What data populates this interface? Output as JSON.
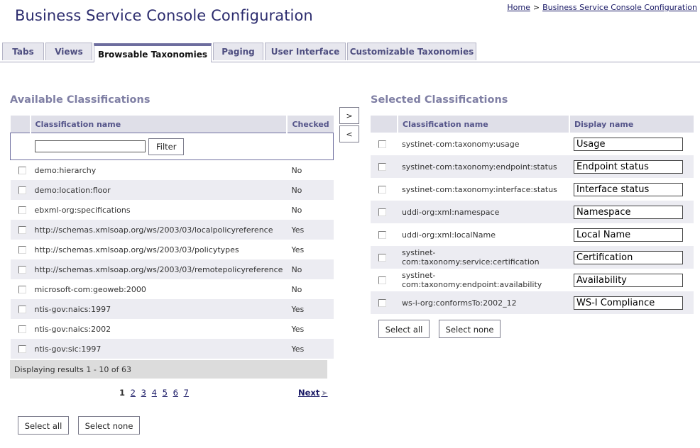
{
  "page": {
    "title": "Business Service Console Configuration"
  },
  "breadcrumb": {
    "home": "Home",
    "separator": ">",
    "current": "Business Service Console Configuration"
  },
  "tabs": [
    {
      "label": "Tabs",
      "active": false
    },
    {
      "label": "Views",
      "active": false
    },
    {
      "label": "Browsable Taxonomies",
      "active": true
    },
    {
      "label": "Paging",
      "active": false
    },
    {
      "label": "User Interface",
      "active": false
    },
    {
      "label": "Customizable Taxonomies",
      "active": false
    }
  ],
  "available": {
    "title": "Available Classifications",
    "headers": {
      "name": "Classification name",
      "checked": "Checked"
    },
    "filter": {
      "value": "",
      "button": "Filter"
    },
    "rows": [
      {
        "name": "demo:hierarchy",
        "checked": "No"
      },
      {
        "name": "demo:location:floor",
        "checked": "No"
      },
      {
        "name": "ebxml-org:specifications",
        "checked": "No"
      },
      {
        "name": "http://schemas.xmlsoap.org/ws/2003/03/localpolicyreference",
        "checked": "Yes"
      },
      {
        "name": "http://schemas.xmlsoap.org/ws/2003/03/policytypes",
        "checked": "Yes"
      },
      {
        "name": "http://schemas.xmlsoap.org/ws/2003/03/remotepolicyreference",
        "checked": "No"
      },
      {
        "name": "microsoft-com:geoweb:2000",
        "checked": "No"
      },
      {
        "name": "ntis-gov:naics:1997",
        "checked": "Yes"
      },
      {
        "name": "ntis-gov:naics:2002",
        "checked": "Yes"
      },
      {
        "name": "ntis-gov:sic:1997",
        "checked": "Yes"
      }
    ],
    "status": "Displaying results 1 - 10 of 63",
    "pages": [
      "1",
      "2",
      "3",
      "4",
      "5",
      "6",
      "7"
    ],
    "current_page": "1",
    "next": "Next",
    "select_all": "Select all",
    "select_none": "Select none"
  },
  "move": {
    "add": ">",
    "remove": "<"
  },
  "selected": {
    "title": "Selected Classifications",
    "headers": {
      "name": "Classification name",
      "display": "Display name"
    },
    "rows": [
      {
        "name": "systinet-com:taxonomy:usage",
        "display": "Usage"
      },
      {
        "name": "systinet-com:taxonomy:endpoint:status",
        "display": "Endpoint status"
      },
      {
        "name": "systinet-com:taxonomy:interface:status",
        "display": "Interface status"
      },
      {
        "name": "uddi-org:xml:namespace",
        "display": "Namespace"
      },
      {
        "name": "uddi-org:xml:localName",
        "display": "Local Name"
      },
      {
        "name": "systinet-com:taxonomy:service:certification",
        "display": "Certification"
      },
      {
        "name": "systinet-com:taxonomy:endpoint:availability",
        "display": "Availability"
      },
      {
        "name": "ws-i-org:conformsTo:2002_12",
        "display": "WS-I Compliance"
      }
    ],
    "select_all": "Select all",
    "select_none": "Select none"
  }
}
